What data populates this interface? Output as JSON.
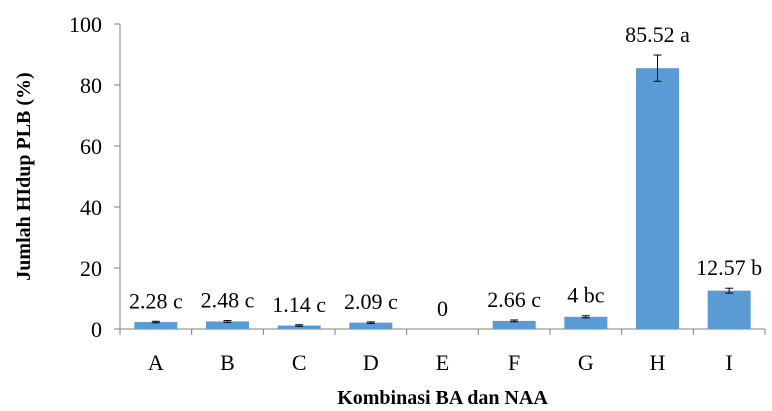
{
  "chart_data": {
    "type": "bar",
    "title": "",
    "xlabel": "Kombinasi BA dan NAA",
    "ylabel": "Jumlah HIdup PLB (%)",
    "ylim": [
      0,
      100
    ],
    "yticks": [
      0,
      20,
      40,
      60,
      80,
      100
    ],
    "categories": [
      "A",
      "B",
      "C",
      "D",
      "E",
      "F",
      "G",
      "H",
      "I"
    ],
    "values": [
      2.28,
      2.48,
      1.14,
      2.09,
      0,
      2.66,
      4,
      85.52,
      12.57
    ],
    "errors": [
      0.25,
      0.3,
      0.25,
      0.25,
      0,
      0.3,
      0.35,
      4.3,
      0.8
    ],
    "data_labels": [
      "2.28 c",
      "2.48 c",
      "1.14 c",
      "2.09 c",
      "0",
      "2.66 c",
      "4 bc",
      "85.52 a",
      "12.57 b"
    ],
    "bar_color": "#5b9bd5",
    "grid": false,
    "legend": "none"
  }
}
